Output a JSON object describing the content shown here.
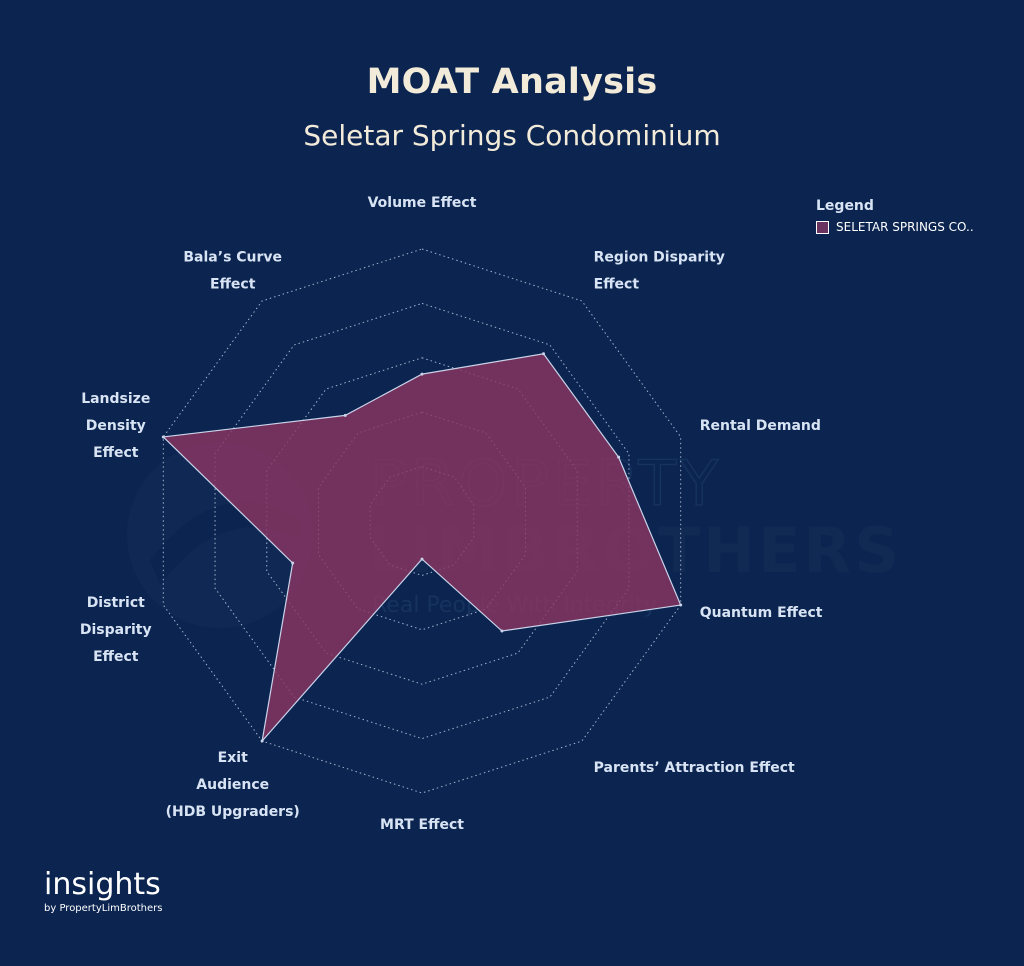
{
  "header": {
    "title": "MOAT Analysis",
    "subtitle": "Seletar Springs Condominium"
  },
  "legend": {
    "title": "Legend",
    "items": [
      {
        "label": "SELETAR SPRINGS CO..",
        "color": "#6b3360"
      }
    ]
  },
  "watermark": {
    "line1": "PROPERTY",
    "line2": "LIMBROTHERS",
    "tagline": "Real People With Integrity"
  },
  "brand": {
    "name": "insights",
    "sub": "by PropertyLimBrothers"
  },
  "colors": {
    "background": "#0b2450",
    "fill": "#8a3562",
    "stroke": "#c9d4ea",
    "grid": "#c9d4ea",
    "label": "#d8e4f4"
  },
  "chart_data": {
    "type": "radar",
    "title": "MOAT Analysis",
    "subtitle": "Seletar Springs Condominium",
    "rmax": 5,
    "grid_levels": 5,
    "axes": [
      {
        "lines": [
          "Volume Effect"
        ]
      },
      {
        "lines": [
          "Region Disparity",
          "Effect"
        ]
      },
      {
        "lines": [
          "Rental Demand"
        ]
      },
      {
        "lines": [
          "Quantum Effect"
        ]
      },
      {
        "lines": [
          "Parents’ Attraction Effect"
        ]
      },
      {
        "lines": [
          "MRT Effect"
        ]
      },
      {
        "lines": [
          "Exit",
          "Audience",
          "(HDB Upgraders)"
        ]
      },
      {
        "lines": [
          "District",
          "Disparity",
          "Effect"
        ]
      },
      {
        "lines": [
          "Landsize",
          "Density",
          "Effect"
        ]
      },
      {
        "lines": [
          "Bala’s Curve",
          "Effect"
        ]
      }
    ],
    "series": [
      {
        "name": "SELETAR SPRINGS CO..",
        "values": [
          2.7,
          3.8,
          3.8,
          5,
          2.5,
          0.7,
          5,
          2.5,
          5,
          2.4
        ]
      }
    ]
  }
}
